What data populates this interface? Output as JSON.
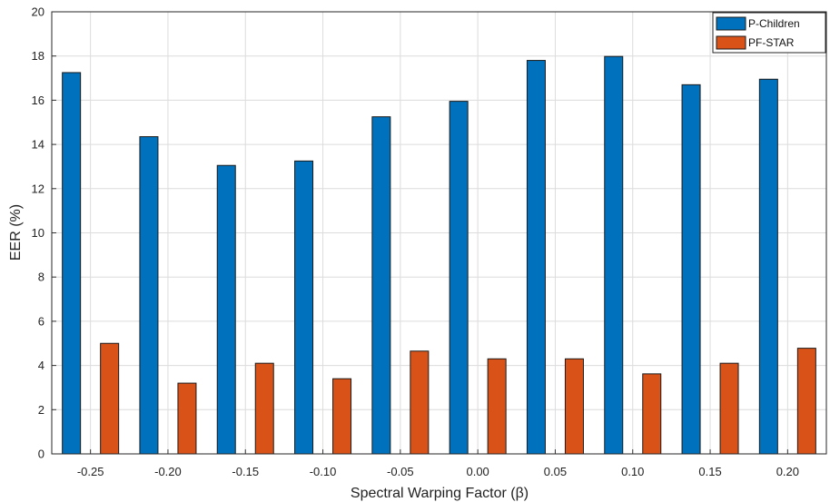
{
  "chart_data": {
    "type": "bar",
    "title": "",
    "xlabel": "Spectral Warping Factor (β)",
    "ylabel": "EER (%)",
    "categories": [
      "-0.25",
      "-0.20",
      "-0.15",
      "-0.10",
      "-0.05",
      "0.00",
      "0.05",
      "0.10",
      "0.15",
      "0.20"
    ],
    "series": [
      {
        "name": "P-Children",
        "color": "#0072BD",
        "values": [
          17.25,
          14.35,
          13.05,
          13.25,
          15.25,
          15.95,
          17.8,
          17.98,
          16.7,
          16.95
        ]
      },
      {
        "name": "PF-STAR",
        "color": "#D95319",
        "values": [
          5.0,
          3.2,
          4.1,
          3.4,
          4.65,
          4.3,
          4.3,
          3.62,
          4.1,
          4.78
        ]
      }
    ],
    "ylim": [
      0,
      20
    ],
    "yticks": [
      0,
      2,
      4,
      6,
      8,
      10,
      12,
      14,
      16,
      18,
      20
    ],
    "grid": true,
    "legend_position": "top-right"
  }
}
